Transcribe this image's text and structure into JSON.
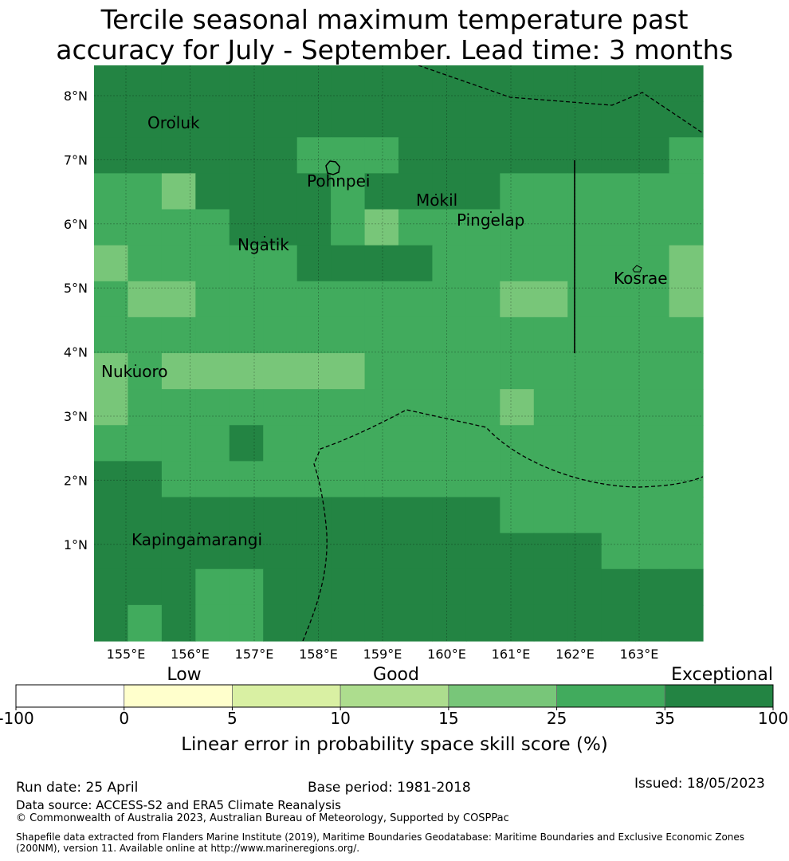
{
  "title": {
    "line1": "Tercile seasonal maximum temperature past",
    "line2": "accuracy for July - September. Lead time: 3 months"
  },
  "map": {
    "lat_labels": [
      "8°N",
      "7°N",
      "6°N",
      "5°N",
      "4°N",
      "3°N",
      "2°N",
      "1°N"
    ],
    "lon_labels": [
      "155°E",
      "156°E",
      "157°E",
      "158°E",
      "159°E",
      "160°E",
      "161°E",
      "162°E",
      "163°E"
    ],
    "islands": [
      "Oroluk",
      "Pohnpei",
      "Mokil",
      "Pingelap",
      "Ngatik",
      "Kosrae",
      "Nukuoro",
      "Kapingamarangi"
    ],
    "legend_palette": {
      "to_25": "#78c679",
      "to_35": "#41ab5d",
      "to_100": "#238443"
    },
    "grid_classes": [
      "333333333333333333",
      "333333333333333333",
      "333333222333333332",
      "221333323333222222",
      "222233321222222222",
      "122222333322222221",
      "211222222222112221",
      "222222222222222222",
      "121111112222222222",
      "122222222222122222",
      "222232222222222222",
      "332222222222222222",
      "333333333333222222",
      "333333333333333222",
      "333223333333333333",
      "323223333333333333"
    ]
  },
  "colorbar": {
    "categories": [
      "Low",
      "Good",
      "Exceptional"
    ],
    "ticks": [
      "-100",
      "0",
      "5",
      "10",
      "15",
      "25",
      "35",
      "100"
    ],
    "colors": [
      "#ffffff",
      "#ffffcc",
      "#d9f0a3",
      "#addd8e",
      "#78c679",
      "#41ab5d",
      "#238443"
    ],
    "label": "Linear error in probability space skill score (%)"
  },
  "footer": {
    "run_date": "Run date: 25 April",
    "base_period": "Base period: 1981-2018",
    "issued": "Issued: 18/05/2023",
    "data_source": "Data source: ACCESS-S2 and ERA5 Climate Reanalysis",
    "copyright": "© Commonwealth of Australia 2023, Australian Bureau of Meteorology, Supported by COSPPac",
    "shapefile_line1": "Shapefile data extracted from Flanders Marine Institute (2019), Maritime Boundaries Geodatabase: Maritime Boundaries and Exclusive Economic Zones",
    "shapefile_line2": "(200NM), version 11. Available online at http://www.marineregions.org/."
  }
}
